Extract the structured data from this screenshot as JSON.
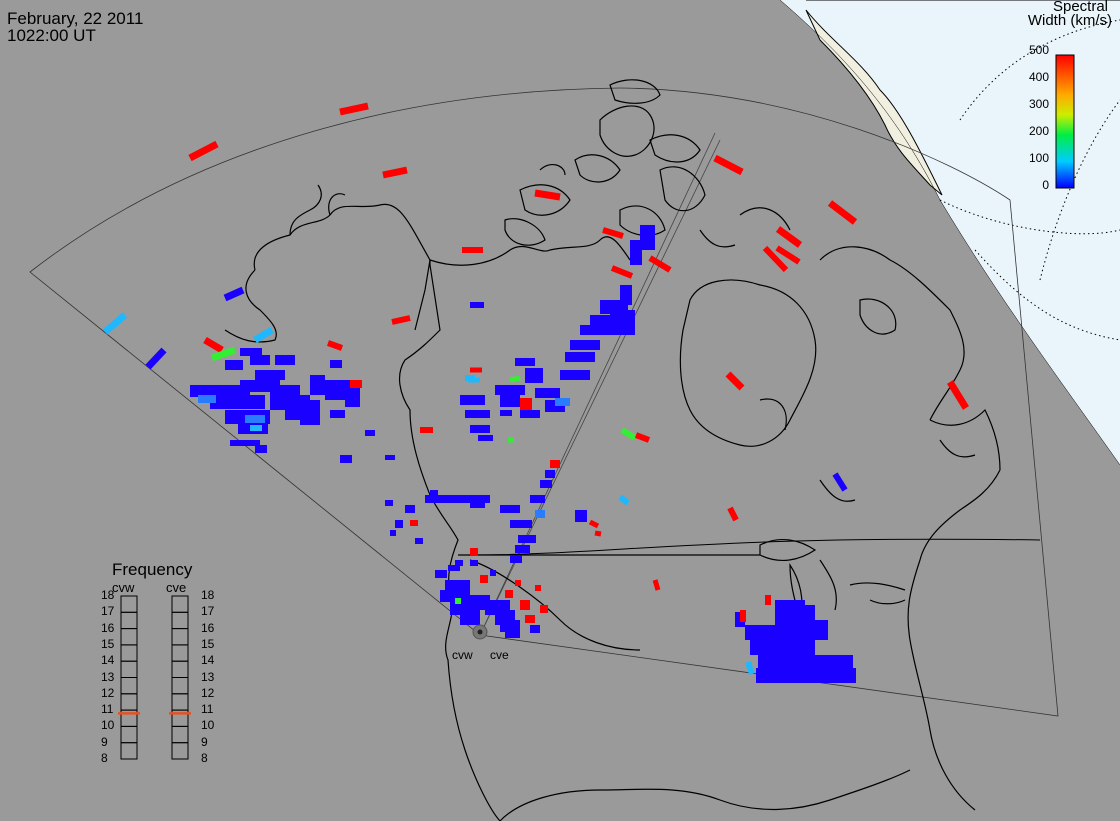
{
  "header": {
    "date": "February, 22 2011",
    "time": "1022:00 UT"
  },
  "colorbar": {
    "title_line1": "Spectral",
    "title_line2": "Width (km/s)",
    "ticks": [
      "500",
      "400",
      "300",
      "200",
      "100",
      "0"
    ],
    "range": [
      0,
      500
    ]
  },
  "frequency": {
    "title": "Frequency",
    "radars": [
      "cvw",
      "cve"
    ],
    "scale": [
      "18",
      "17",
      "16",
      "15",
      "14",
      "13",
      "12",
      "11",
      "10",
      "9",
      "8"
    ],
    "selected": {
      "cvw": 10.8,
      "cve": 10.8
    },
    "marker_color": "#e85020"
  },
  "radar_labels": [
    "cvw",
    "cve"
  ],
  "colors": {
    "background": "#9a9a9a",
    "daylight": "#eaf5fb",
    "coast": "#000000"
  }
}
